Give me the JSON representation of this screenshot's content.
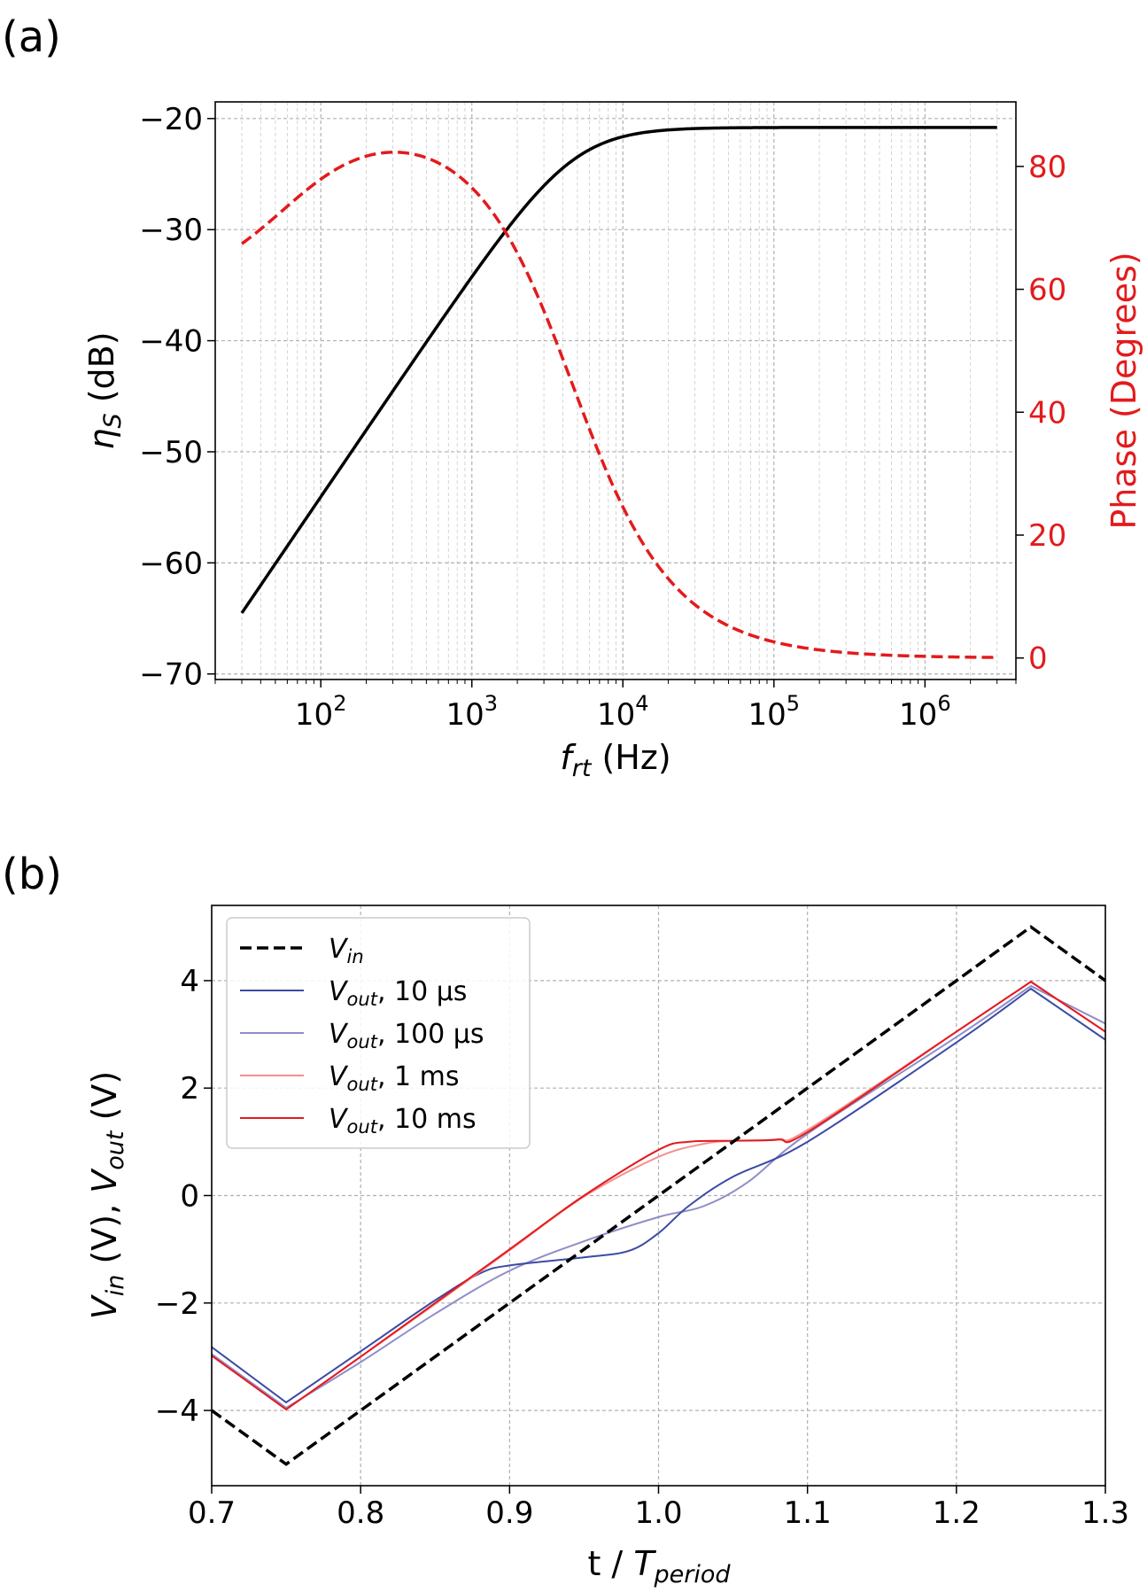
{
  "chart_data": [
    {
      "panel_label": "(a)",
      "type": "line",
      "xscale": "log",
      "xlabel": "f",
      "xlabel_sub": "rt",
      "xlabel_unit": " (Hz)",
      "xlim": [
        20,
        4000000
      ],
      "xticks": [
        {
          "value": 100,
          "base": "10",
          "exp": "2"
        },
        {
          "value": 1000,
          "base": "10",
          "exp": "3"
        },
        {
          "value": 10000,
          "base": "10",
          "exp": "4"
        },
        {
          "value": 100000,
          "base": "10",
          "exp": "5"
        },
        {
          "value": 1000000,
          "base": "10",
          "exp": "6"
        }
      ],
      "ylabel_left_symbol": "η",
      "ylabel_left_sub": "S",
      "ylabel_left_unit": " (dB)",
      "ylim_left": [
        -70.5,
        -18.5
      ],
      "yticks_left": [
        {
          "value": -20,
          "label": "−20"
        },
        {
          "value": -30,
          "label": "−30"
        },
        {
          "value": -40,
          "label": "−40"
        },
        {
          "value": -50,
          "label": "−50"
        },
        {
          "value": -60,
          "label": "−60"
        },
        {
          "value": -70,
          "label": "−70"
        }
      ],
      "ylabel_right": "Phase (Degrees)",
      "ylim_right": [
        -3.5,
        90.5
      ],
      "yticks_right": [
        {
          "value": 0,
          "label": "0"
        },
        {
          "value": 20,
          "label": "20"
        },
        {
          "value": 40,
          "label": "40"
        },
        {
          "value": 60,
          "label": "60"
        },
        {
          "value": 80,
          "label": "80"
        }
      ],
      "grid": true,
      "model": {
        "f_low": 30,
        "f_high": 3000000,
        "fc": 4600,
        "db_max": -20.8
      },
      "series": [
        {
          "name": "magnitude",
          "axis": "left",
          "color": "#000000",
          "style": "solid",
          "width": 3.5
        },
        {
          "name": "phase",
          "axis": "right",
          "color": "#e31a1c",
          "style": "dashed",
          "width": 3.5
        }
      ]
    },
    {
      "panel_label": "(b)",
      "type": "line",
      "xlabel": "t / ",
      "xlabel_italic": "T",
      "xlabel_sub": "period",
      "xlim": [
        0.7,
        1.3
      ],
      "xticks": [
        {
          "value": 0.7,
          "label": "0.7"
        },
        {
          "value": 0.8,
          "label": "0.8"
        },
        {
          "value": 0.9,
          "label": "0.9"
        },
        {
          "value": 1.0,
          "label": "1.0"
        },
        {
          "value": 1.1,
          "label": "1.1"
        },
        {
          "value": 1.2,
          "label": "1.2"
        },
        {
          "value": 1.3,
          "label": "1.3"
        }
      ],
      "ylabel_parts": [
        "V",
        "in",
        " (V), ",
        "V",
        "out",
        " (V)"
      ],
      "ylim": [
        -5.4,
        5.4
      ],
      "yticks": [
        {
          "value": 4,
          "label": "4"
        },
        {
          "value": 2,
          "label": "2"
        },
        {
          "value": 0,
          "label": "0"
        },
        {
          "value": -2,
          "label": "−2"
        },
        {
          "value": -4,
          "label": "−4"
        }
      ],
      "grid": true,
      "legend_position": "top-left",
      "series": [
        {
          "name": "V_in",
          "legend_italic": "V",
          "legend_sub": "in",
          "legend_rest": "",
          "color": "#000000",
          "style": "dashed",
          "width": 3.5,
          "x": [
            0.7,
            0.75,
            1.25,
            1.3
          ],
          "y": [
            -4,
            -5,
            5,
            4
          ]
        },
        {
          "name": "V_out 10 us",
          "legend_italic": "V",
          "legend_sub": "out",
          "legend_rest": ", 10 μs",
          "color": "#3b4ba3",
          "style": "solid",
          "width": 2,
          "x": [
            0.7,
            0.75,
            0.8,
            0.85,
            0.88,
            0.9,
            0.95,
            0.98,
            1.0,
            1.02,
            1.05,
            1.1,
            1.2,
            1.25,
            1.3
          ],
          "y": [
            -2.82,
            -3.85,
            -2.9,
            -1.95,
            -1.45,
            -1.3,
            -1.15,
            -1.03,
            -0.7,
            -0.2,
            0.35,
            1.0,
            2.85,
            3.85,
            2.9
          ]
        },
        {
          "name": "V_out 100 us",
          "legend_italic": "V",
          "legend_sub": "out",
          "legend_rest": ", 100 μs",
          "color": "#8e8ec9",
          "style": "solid",
          "width": 2,
          "x": [
            0.7,
            0.75,
            0.8,
            0.85,
            0.9,
            0.95,
            1.0,
            1.03,
            1.06,
            1.1,
            1.2,
            1.25,
            1.3
          ],
          "y": [
            -2.95,
            -3.95,
            -3.1,
            -2.2,
            -1.4,
            -0.85,
            -0.4,
            -0.2,
            0.25,
            1.15,
            2.95,
            3.9,
            3.2
          ]
        },
        {
          "name": "V_out 1 ms",
          "legend_italic": "V",
          "legend_sub": "out",
          "legend_rest": ", 1 ms",
          "color": "#f49090",
          "style": "solid",
          "width": 2,
          "x": [
            0.7,
            0.75,
            0.8,
            0.85,
            0.9,
            0.95,
            1.0,
            1.03,
            1.05,
            1.08,
            1.1,
            1.2,
            1.25,
            1.3
          ],
          "y": [
            -2.98,
            -3.98,
            -3.0,
            -2.02,
            -1.02,
            -0.02,
            0.72,
            0.96,
            1.02,
            1.05,
            1.22,
            3.05,
            3.98,
            3.05
          ]
        },
        {
          "name": "V_out 10 ms",
          "legend_italic": "V",
          "legend_sub": "out",
          "legend_rest": ", 10 ms",
          "color": "#e31a1c",
          "style": "solid",
          "width": 2,
          "x": [
            0.7,
            0.75,
            0.8,
            0.85,
            0.9,
            0.95,
            1.0,
            1.02,
            1.05,
            1.08,
            1.1,
            1.2,
            1.25,
            1.3
          ],
          "y": [
            -2.98,
            -3.98,
            -3.0,
            -2.0,
            -1.0,
            0.0,
            0.85,
            1.0,
            1.02,
            1.04,
            1.18,
            3.05,
            3.98,
            3.05
          ]
        }
      ]
    }
  ]
}
